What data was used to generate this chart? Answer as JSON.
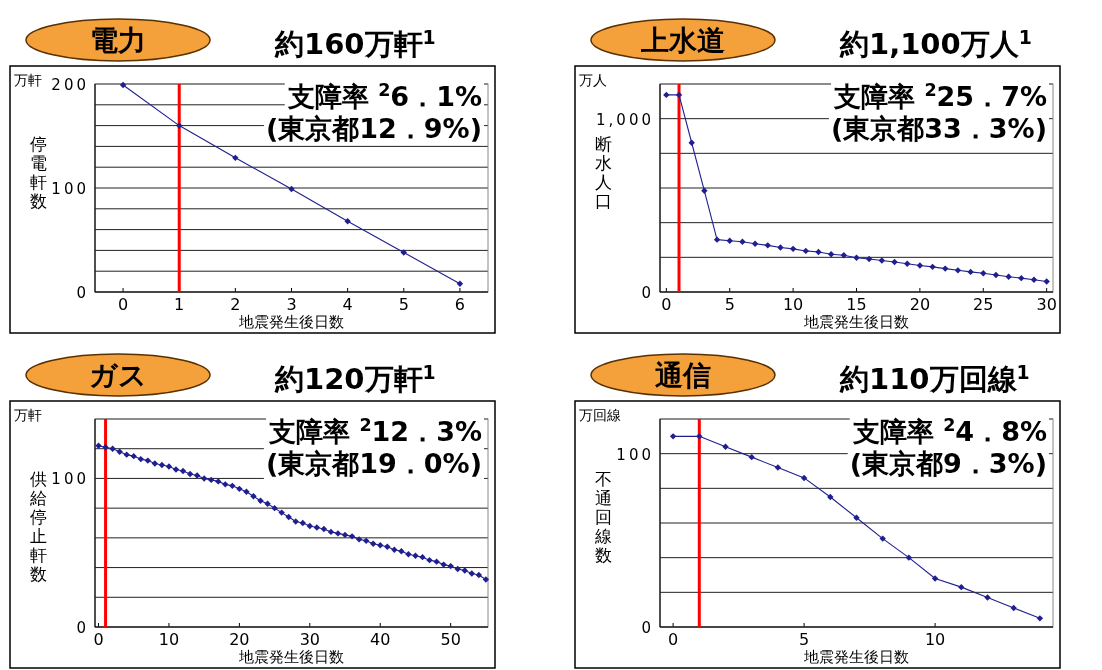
{
  "chart_data": [
    {
      "type": "line",
      "title": "電力",
      "subtitle": "約160万軒$^{1}$",
      "xlabel": "地震発生後日数",
      "ylabel": "停電軒数",
      "annotations": [
        "万軒",
        "支障率 $^{2}$6．1%",
        "(東京都12．9%)"
      ],
      "x": [
        0,
        1,
        2,
        3,
        4,
        5,
        6
      ],
      "values": [
        199,
        160,
        129,
        99,
        68,
        38,
        8
      ],
      "color": "#1f1f8f",
      "marker": "diamond",
      "grid": "y",
      "xlim": [
        -0.5,
        6.5
      ],
      "ylim": [
        0,
        200
      ],
      "xticks": [
        0,
        1,
        2,
        3,
        4,
        5,
        6
      ],
      "yticks": [
        0,
        {
          "value": 20,
          "label": null
        },
        {
          "value": 40,
          "label": null
        },
        {
          "value": 60,
          "label": null
        },
        {
          "value": 80,
          "label": null
        },
        100,
        {
          "value": 120,
          "label": null
        },
        {
          "value": 140,
          "label": null
        },
        {
          "value": 160,
          "label": null
        },
        {
          "value": 180,
          "label": null
        },
        200
      ],
      "ref_lines": [
        {
          "axis": "x",
          "value": 1,
          "color": "#ff0000"
        }
      ]
    },
    {
      "type": "line",
      "title": "上水道",
      "subtitle": "約1,100万人$^{1}$",
      "xlabel": "地震発生後日数",
      "ylabel": "断水人口",
      "annotations": [
        "万人",
        "支障率 $^{2}$25．7%",
        "(東京都33．3%)"
      ],
      "x": [
        0,
        1,
        2,
        3,
        4,
        5,
        6,
        7,
        8,
        9,
        10,
        11,
        12,
        13,
        14,
        15,
        16,
        17,
        18,
        19,
        20,
        21,
        22,
        23,
        24,
        25,
        26,
        27,
        28,
        29,
        30
      ],
      "values": [
        1137,
        1137,
        861,
        584,
        302,
        296,
        290,
        278,
        269,
        257,
        249,
        237,
        231,
        218,
        212,
        198,
        190,
        182,
        173,
        163,
        153,
        145,
        135,
        125,
        116,
        108,
        98,
        88,
        80,
        71,
        61
      ],
      "color": "#1f1f8f",
      "marker": "diamond",
      "grid": "y",
      "xlim": [
        -0.5,
        30.5
      ],
      "ylim": [
        0,
        1200
      ],
      "xticks": [
        0,
        5,
        10,
        15,
        20,
        25,
        30
      ],
      "yticks": [
        0,
        {
          "value": 200,
          "label": null
        },
        {
          "value": 400,
          "label": null
        },
        {
          "value": 600,
          "label": null
        },
        {
          "value": 800,
          "label": null
        },
        {
          "value": 1000,
          "label": "1,000"
        },
        {
          "value": 1200,
          "label": null
        }
      ],
      "ref_lines": [
        {
          "axis": "x",
          "value": 1,
          "color": "#ff0000"
        }
      ]
    },
    {
      "type": "line",
      "title": "ガス",
      "subtitle": "約120万軒$^{1}$",
      "xlabel": "地震発生後日数",
      "ylabel": "供給停止軒数",
      "annotations": [
        "万軒",
        "支障率 $^{2}$12．3%",
        "(東京都19．0%)"
      ],
      "x": [
        0,
        1,
        2,
        3,
        4,
        5,
        6,
        7,
        8,
        9,
        10,
        11,
        12,
        13,
        14,
        15,
        16,
        17,
        18,
        19,
        20,
        21,
        22,
        23,
        24,
        25,
        26,
        27,
        28,
        29,
        30,
        31,
        32,
        33,
        34,
        35,
        36,
        37,
        38,
        39,
        40,
        41,
        42,
        43,
        44,
        45,
        46,
        47,
        48,
        49,
        50,
        51,
        52,
        53,
        54,
        55
      ],
      "values": [
        122,
        121,
        120,
        118,
        116,
        115,
        113,
        112,
        110,
        109,
        108,
        106,
        105,
        103,
        102,
        100,
        99,
        98,
        96,
        95,
        93,
        91,
        88,
        85,
        83,
        80,
        77,
        74,
        71,
        70,
        68,
        67,
        66,
        64,
        63,
        62,
        61,
        59,
        58,
        56,
        55,
        54,
        52,
        51,
        49,
        48,
        47,
        45,
        44,
        42,
        41,
        39,
        38,
        36,
        35,
        32
      ],
      "color": "#1f1f8f",
      "marker": "diamond",
      "grid": "y",
      "xlim": [
        -0.5,
        55.3
      ],
      "ylim": [
        0,
        140
      ],
      "xticks": [
        0,
        10,
        20,
        30,
        40,
        50
      ],
      "yticks": [
        0,
        {
          "value": 20,
          "label": null
        },
        {
          "value": 40,
          "label": null
        },
        {
          "value": 60,
          "label": null
        },
        {
          "value": 80,
          "label": null
        },
        100,
        {
          "value": 120,
          "label": null
        },
        {
          "value": 140,
          "label": null
        }
      ],
      "ref_lines": [
        {
          "axis": "x",
          "value": 1,
          "color": "#ff0000"
        }
      ]
    },
    {
      "type": "line",
      "title": "通信",
      "subtitle": "約110万回線$^{1}$",
      "xlabel": "地震発生後日数",
      "ylabel": "不通回線数",
      "annotations": [
        "万回線",
        "支障率 $^{2}$4．8%",
        "(東京都9．3%)"
      ],
      "x": [
        0,
        1,
        2,
        3,
        4,
        5,
        6,
        7,
        8,
        9,
        10,
        11,
        12,
        13,
        14
      ],
      "values": [
        110,
        110,
        104,
        98,
        92,
        86,
        75,
        63,
        51,
        40,
        28,
        23,
        17,
        11,
        5
      ],
      "color": "#1f1f8f",
      "marker": "diamond",
      "grid": "y",
      "xlim": [
        -0.5,
        14.5
      ],
      "ylim": [
        0,
        120
      ],
      "xticks": [
        0,
        5,
        10
      ],
      "yticks": [
        0,
        {
          "value": 20,
          "label": null
        },
        {
          "value": 40,
          "label": null
        },
        {
          "value": 60,
          "label": null
        },
        {
          "value": 80,
          "label": null
        },
        100,
        {
          "value": 120,
          "label": null
        }
      ],
      "ref_lines": [
        {
          "axis": "x",
          "value": 1,
          "color": "#ff0000"
        }
      ]
    }
  ]
}
